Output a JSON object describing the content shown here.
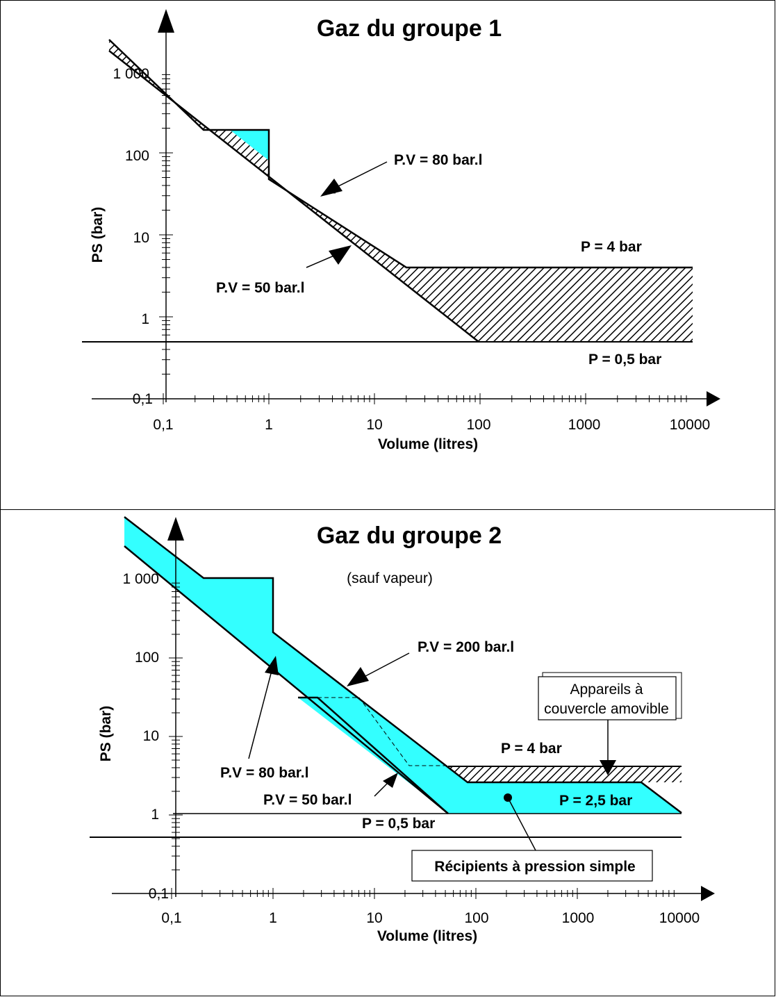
{
  "chart_data": [
    {
      "type": "area",
      "title": "Gaz du groupe 1",
      "xlabel": "Volume (litres)",
      "ylabel": "PS (bar)",
      "x_scale": "log",
      "y_scale": "log",
      "xlim": [
        0.1,
        10000
      ],
      "ylim": [
        0.1,
        1000
      ],
      "x_ticks": [
        "0,1",
        "1",
        "10",
        "100",
        "1000",
        "10000"
      ],
      "y_ticks": [
        "0,1",
        "1",
        "10",
        "100",
        "1 000"
      ],
      "colors": {
        "cyan_region": "#33ffff",
        "hatch": "#000000"
      },
      "series": [
        {
          "label": "P.V = 50 bar.l",
          "kind": "line",
          "points": [
            [
              0.03,
              1667
            ],
            [
              100,
              0.5
            ]
          ]
        },
        {
          "label": "P.V = 80 bar.l",
          "kind": "line",
          "points": [
            [
              0.03,
              2667
            ],
            [
              20,
              4
            ]
          ]
        },
        {
          "label": "P = 4 bar",
          "kind": "hline",
          "y": 4,
          "x_from": 20,
          "x_to": 2000
        },
        {
          "label": "P = 0,5 bar",
          "kind": "hline",
          "y": 0.5,
          "x_from": 0.05,
          "x_to": 10000
        }
      ],
      "regions": [
        {
          "fill": "hatch",
          "description_points": [
            [
              0.03,
              2667
            ],
            [
              0.25,
              200
            ],
            [
              0.4,
              200
            ],
            [
              1,
              80
            ],
            [
              1,
              50
            ],
            [
              20,
              4
            ],
            [
              10000,
              4
            ],
            [
              10000,
              0.5
            ],
            [
              100,
              0.5
            ],
            [
              0.03,
              1667
            ]
          ]
        },
        {
          "fill": "cyan",
          "description_points": [
            [
              0.4,
              200
            ],
            [
              1,
              200
            ],
            [
              1,
              80
            ]
          ]
        }
      ],
      "annotations": [
        {
          "text": "P.V = 80 bar.l",
          "points_to": [
            6.3,
            12.7
          ]
        },
        {
          "text": "P.V = 50 bar.l",
          "points_to": [
            6.3,
            8
          ]
        },
        {
          "text": "P = 4 bar"
        },
        {
          "text": "P = 0,5 bar"
        }
      ]
    },
    {
      "type": "area",
      "title": "Gaz du groupe 2",
      "subtitle": "(sauf vapeur)",
      "xlabel": "Volume (litres)",
      "ylabel": "PS (bar)",
      "x_scale": "log",
      "y_scale": "log",
      "xlim": [
        0.1,
        10000
      ],
      "ylim": [
        0.1,
        1000
      ],
      "x_ticks": [
        "0,1",
        "1",
        "10",
        "100",
        "1000",
        "10000"
      ],
      "y_ticks": [
        "0,1",
        "1",
        "10",
        "100",
        "1 000"
      ],
      "colors": {
        "cyan_region": "#33ffff",
        "hatch": "#000000"
      },
      "series": [
        {
          "label": "P.V = 80 bar.l",
          "kind": "line",
          "points": [
            [
              0.02,
              4000
            ],
            [
              0.9,
              90
            ]
          ]
        },
        {
          "label": "P.V = 200 bar.l",
          "kind": "line",
          "points": [
            [
              1,
              200
            ],
            [
              80,
              2.5
            ]
          ]
        },
        {
          "label": "P.V = 50 bar.l",
          "kind": "line",
          "points": [
            [
              1.8,
              30
            ],
            [
              50,
              1
            ]
          ]
        },
        {
          "label": "P = 4 bar",
          "kind": "hline",
          "y": 4
        },
        {
          "label": "P = 2,5 bar",
          "kind": "hline",
          "y": 2.5
        },
        {
          "label": "P = 0,5 bar",
          "kind": "hline",
          "y": 0.5
        }
      ],
      "regions": [
        {
          "fill": "cyan",
          "name": "main band"
        },
        {
          "fill": "cyan",
          "name": "Récipients à pression simple"
        },
        {
          "fill": "hatch",
          "name": "Appareils à couvercle amovible"
        }
      ],
      "annotations": [
        {
          "text": "P.V = 200 bar.l"
        },
        {
          "text": "P.V = 80 bar.l"
        },
        {
          "text": "P.V = 50 bar.l"
        },
        {
          "text": "P = 4 bar"
        },
        {
          "text": "P = 2,5 bar"
        },
        {
          "text": "P = 0,5 bar"
        },
        {
          "text": "Appareils à couvercle amovible",
          "lines": [
            "Appareils à",
            "couvercle amovible"
          ],
          "boxed": true
        },
        {
          "text": "Récipients à pression simple",
          "boxed": true
        }
      ]
    }
  ],
  "labels": {
    "g1": {
      "title": "Gaz du groupe 1",
      "ylabel": "PS (bar)",
      "xlabel": "Volume (litres)",
      "pv80": "P.V = 80 bar.l",
      "pv50": "P.V = 50 bar.l",
      "p4": "P = 4 bar",
      "p05": "P = 0,5 bar",
      "xt": [
        "0,1",
        "1",
        "10",
        "100",
        "1000",
        "10000"
      ],
      "yt": [
        "0,1",
        "1",
        "10",
        "100",
        "1 000"
      ]
    },
    "g2": {
      "title": "Gaz du groupe 2",
      "subtitle": "(sauf vapeur)",
      "ylabel": "PS (bar)",
      "xlabel": "Volume (litres)",
      "pv200": "P.V = 200 bar.l",
      "pv80": "P.V = 80 bar.l",
      "pv50": "P.V = 50 bar.l",
      "p4": "P = 4 bar",
      "p25": "P = 2,5 bar",
      "p05": "P = 0,5 bar",
      "box_appareils_1": "Appareils à",
      "box_appareils_2": "couvercle amovible",
      "box_recipients": "Récipients à pression simple",
      "xt": [
        "0,1",
        "1",
        "10",
        "100",
        "1000",
        "10000"
      ],
      "yt": [
        "0,1",
        "1",
        "10",
        "100",
        "1 000"
      ]
    }
  }
}
